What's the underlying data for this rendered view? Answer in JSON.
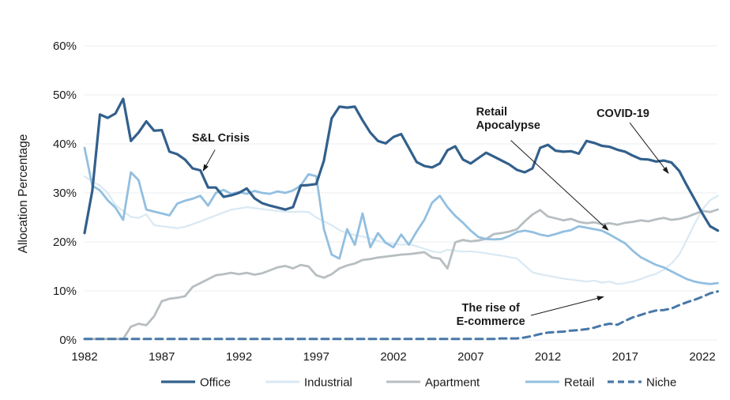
{
  "chart_data": {
    "type": "line",
    "title": "",
    "ylabel": "Allocation Percentage",
    "x_start": 1982,
    "x_step": 0.5,
    "xlim": [
      1982,
      2023
    ],
    "ylim": [
      0,
      65
    ],
    "grid": "horizontal",
    "legend_position": "bottom",
    "x_ticks": [
      "1982",
      "1987",
      "1992",
      "1997",
      "2002",
      "2007",
      "2012",
      "2017",
      "2022"
    ],
    "x_tick_values": [
      1982,
      1987,
      1992,
      1997,
      2002,
      2007,
      2012,
      2017,
      2022
    ],
    "y_ticks": [
      "0%",
      "10%",
      "20%",
      "30%",
      "40%",
      "50%",
      "60%"
    ],
    "y_tick_values": [
      0,
      10,
      20,
      30,
      40,
      50,
      60
    ],
    "series": [
      {
        "name": "Industrial",
        "color": "#d9e9f4",
        "style": "solid",
        "values": [
          33.4,
          32.3,
          31.5,
          30.0,
          27.5,
          26.3,
          25.1,
          24.9,
          25.6,
          23.4,
          23.2,
          23.0,
          22.8,
          23.1,
          23.6,
          24.2,
          24.8,
          25.4,
          26.0,
          26.6,
          26.8,
          27.1,
          26.9,
          26.7,
          26.5,
          26.3,
          26.2,
          26.1,
          26.2,
          26.1,
          25.0,
          24.2,
          23.4,
          22.4,
          21.8,
          21.4,
          21.1,
          20.7,
          20.2,
          19.8,
          19.6,
          19.4,
          19.6,
          19.1,
          18.6,
          18.1,
          17.8,
          18.4,
          18.2,
          18.0,
          18.1,
          17.9,
          17.7,
          17.4,
          17.2,
          16.9,
          16.6,
          15.2,
          13.8,
          13.4,
          13.1,
          12.8,
          12.5,
          12.3,
          12.1,
          11.9,
          12.1,
          11.7,
          11.9,
          11.4,
          11.6,
          11.9,
          12.4,
          13.0,
          13.5,
          14.3,
          15.6,
          17.4,
          20.5,
          23.7,
          26.6,
          28.5,
          29.4
        ]
      },
      {
        "name": "Apartment",
        "color": "#b7bec1",
        "style": "solid",
        "values": [
          0.2,
          0.2,
          0.2,
          0.2,
          0.2,
          0.2,
          2.7,
          3.3,
          3.0,
          4.8,
          7.9,
          8.4,
          8.6,
          8.9,
          10.8,
          11.6,
          12.4,
          13.2,
          13.4,
          13.7,
          13.4,
          13.7,
          13.3,
          13.6,
          14.2,
          14.8,
          15.1,
          14.6,
          15.3,
          15.0,
          13.2,
          12.7,
          13.4,
          14.6,
          15.2,
          15.6,
          16.3,
          16.5,
          16.8,
          17.0,
          17.2,
          17.4,
          17.5,
          17.7,
          17.9,
          16.8,
          16.6,
          14.6,
          19.9,
          20.4,
          20.1,
          20.3,
          20.6,
          21.6,
          21.8,
          22.1,
          22.6,
          24.2,
          25.6,
          26.5,
          25.2,
          24.8,
          24.4,
          24.7,
          24.1,
          23.8,
          24.0,
          23.6,
          23.8,
          23.5,
          23.9,
          24.1,
          24.4,
          24.2,
          24.6,
          24.9,
          24.5,
          24.7,
          25.1,
          25.7,
          26.3,
          26.1,
          26.6
        ]
      },
      {
        "name": "Retail",
        "color": "#92bfe0",
        "style": "solid",
        "values": [
          39.2,
          31.5,
          30.5,
          28.5,
          27.0,
          24.5,
          34.2,
          32.6,
          26.6,
          26.2,
          25.8,
          25.4,
          27.8,
          28.4,
          28.8,
          29.4,
          27.4,
          30.0,
          30.6,
          29.8,
          30.2,
          29.8,
          30.4,
          30.0,
          29.8,
          30.3,
          30.0,
          30.5,
          31.5,
          33.8,
          33.4,
          22.6,
          17.4,
          16.6,
          22.6,
          19.4,
          25.8,
          18.9,
          21.8,
          19.8,
          18.9,
          21.5,
          19.4,
          22.1,
          24.5,
          28.0,
          29.4,
          27.1,
          25.3,
          23.9,
          22.3,
          21.0,
          20.6,
          20.5,
          20.6,
          21.2,
          22.0,
          22.3,
          22.0,
          21.5,
          21.2,
          21.6,
          22.1,
          22.4,
          23.2,
          22.9,
          22.6,
          22.3,
          21.5,
          20.6,
          19.7,
          18.2,
          16.9,
          16.1,
          15.3,
          14.8,
          14.0,
          13.2,
          12.4,
          11.9,
          11.6,
          11.4,
          11.6
        ]
      },
      {
        "name": "Niche",
        "color": "#4878a8",
        "style": "dashed",
        "values": [
          0.2,
          0.2,
          0.2,
          0.2,
          0.2,
          0.2,
          0.2,
          0.2,
          0.2,
          0.2,
          0.2,
          0.2,
          0.2,
          0.2,
          0.2,
          0.2,
          0.2,
          0.2,
          0.2,
          0.2,
          0.2,
          0.2,
          0.2,
          0.2,
          0.2,
          0.2,
          0.2,
          0.2,
          0.2,
          0.2,
          0.2,
          0.2,
          0.2,
          0.2,
          0.2,
          0.2,
          0.2,
          0.2,
          0.2,
          0.2,
          0.2,
          0.2,
          0.2,
          0.2,
          0.2,
          0.2,
          0.2,
          0.2,
          0.2,
          0.2,
          0.2,
          0.2,
          0.2,
          0.2,
          0.3,
          0.3,
          0.3,
          0.5,
          0.8,
          1.2,
          1.5,
          1.6,
          1.7,
          1.9,
          2.0,
          2.2,
          2.5,
          3.0,
          3.3,
          3.1,
          3.9,
          4.6,
          5.1,
          5.6,
          6.0,
          6.1,
          6.4,
          7.1,
          7.7,
          8.2,
          8.8,
          9.5,
          9.9
        ]
      },
      {
        "name": "Office",
        "color": "#32608c",
        "style": "solid",
        "values": [
          21.8,
          30.4,
          46.0,
          45.3,
          46.2,
          49.2,
          40.6,
          42.3,
          44.6,
          42.7,
          42.8,
          38.4,
          37.9,
          36.8,
          35.0,
          34.6,
          31.1,
          31.1,
          29.2,
          29.5,
          30.0,
          30.9,
          28.9,
          27.9,
          27.4,
          27.0,
          26.6,
          27.1,
          31.5,
          31.6,
          31.8,
          36.6,
          45.2,
          47.6,
          47.4,
          47.6,
          44.8,
          42.3,
          40.6,
          40.1,
          41.4,
          42.0,
          39.2,
          36.3,
          35.5,
          35.2,
          36.0,
          38.7,
          39.5,
          36.8,
          36.0,
          37.1,
          38.2,
          37.4,
          36.6,
          35.8,
          34.7,
          34.2,
          35.0,
          39.2,
          39.8,
          38.6,
          38.4,
          38.5,
          38.0,
          40.6,
          40.2,
          39.6,
          39.4,
          38.8,
          38.4,
          37.6,
          36.9,
          36.8,
          36.4,
          36.6,
          36.2,
          34.5,
          31.5,
          28.7,
          25.8,
          23.2,
          22.3
        ]
      }
    ],
    "legend_order": [
      "Office",
      "Industrial",
      "Apartment",
      "Retail",
      "Niche"
    ],
    "annotations": [
      {
        "id": "sl-crisis",
        "lines": [
          "S&L Crisis"
        ],
        "align": "left",
        "year": 1988.95,
        "pct_top": 42.6,
        "arrow": {
          "y1": 1990.45,
          "p1": 38.8,
          "y2": 1989.68,
          "p2": 34.5
        }
      },
      {
        "id": "retail-apocalypse",
        "lines": [
          "Retail",
          "Apocalypse"
        ],
        "align": "left",
        "year": 2007.35,
        "pct_top": 47.9,
        "arrow": {
          "y1": 2009.6,
          "p1": 40.7,
          "y2": 2015.9,
          "p2": 22.4
        }
      },
      {
        "id": "covid-19",
        "lines": [
          "COVID-19"
        ],
        "align": "left",
        "year": 2015.15,
        "pct_top": 47.6,
        "arrow": {
          "y1": 2017.3,
          "p1": 44.3,
          "y2": 2019.8,
          "p2": 34.0
        }
      },
      {
        "id": "rise-of-ecommerce",
        "lines": [
          "The rise of",
          "E-commerce"
        ],
        "align": "center",
        "year": 2008.3,
        "pct_top": 7.9,
        "arrow": {
          "y1": 2010.9,
          "p1": 5.0,
          "y2": 2015.6,
          "p2": 8.8
        }
      }
    ]
  }
}
